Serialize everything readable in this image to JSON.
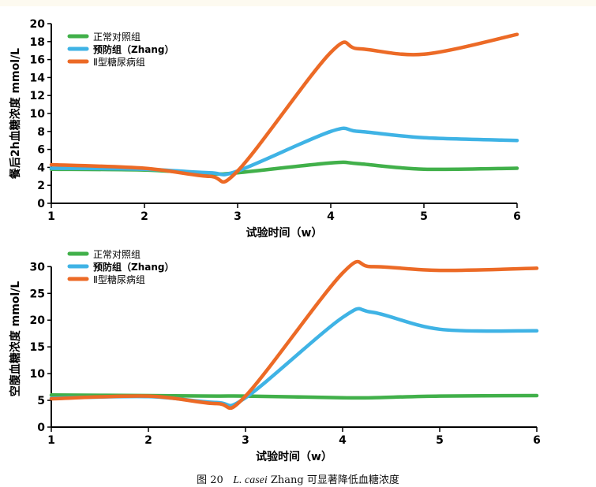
{
  "caption": {
    "figure_no": "图 20",
    "species": "L. casei",
    "text": " Zhang 可显著降低血糖浓度"
  },
  "colors": {
    "normal": "#41b04a",
    "prevention": "#3fb3e5",
    "diabetes": "#ec6a26"
  },
  "chart_data": [
    {
      "type": "line",
      "ylabel": "餐后2h血糖浓度 mmol/L",
      "xlabel": "试验时间（w）",
      "x": [
        1,
        2,
        2.7,
        3,
        4,
        4.3,
        5,
        6
      ],
      "xticks": [
        1,
        2,
        3,
        4,
        5,
        6
      ],
      "xlim": [
        1,
        6
      ],
      "ylim": [
        0,
        20
      ],
      "yticks": [
        0,
        2,
        4,
        6,
        8,
        10,
        12,
        14,
        16,
        18,
        20
      ],
      "legend": "top-left",
      "series": [
        {
          "name": "正常对照组",
          "color": "#41b04a",
          "values": [
            3.8,
            3.7,
            3.3,
            3.4,
            4.5,
            4.4,
            3.8,
            3.9
          ]
        },
        {
          "name": "预防组（Zhang）",
          "color": "#3fb3e5",
          "values": [
            3.9,
            3.8,
            3.4,
            3.6,
            8.0,
            8.0,
            7.3,
            7.0
          ]
        },
        {
          "name": "Ⅱ型糖尿病组",
          "color": "#ec6a26",
          "values": [
            4.3,
            3.9,
            3.0,
            3.6,
            16.8,
            17.2,
            16.6,
            18.8
          ]
        }
      ]
    },
    {
      "type": "line",
      "ylabel": "空腹血糖浓度 mmol/L",
      "xlabel": "试验时间（w）",
      "x": [
        1,
        2,
        2.7,
        3,
        4,
        4.3,
        5,
        6
      ],
      "xticks": [
        1,
        2,
        3,
        4,
        5,
        6
      ],
      "xlim": [
        1,
        6
      ],
      "ylim": [
        0,
        33
      ],
      "yticks": [
        0,
        5,
        10,
        15,
        20,
        25,
        30
      ],
      "legend": "top-left",
      "series": [
        {
          "name": "正常对照组",
          "color": "#41b04a",
          "values": [
            6.0,
            5.9,
            5.8,
            5.8,
            5.5,
            5.5,
            5.8,
            5.9
          ]
        },
        {
          "name": "预防组（Zhang）",
          "color": "#3fb3e5",
          "values": [
            5.4,
            5.7,
            4.6,
            5.5,
            20.5,
            21.5,
            18.3,
            18.0
          ]
        },
        {
          "name": "Ⅱ型糖尿病组",
          "color": "#ec6a26",
          "values": [
            5.3,
            5.8,
            4.4,
            5.8,
            28.8,
            30.0,
            29.3,
            29.7
          ]
        }
      ]
    }
  ]
}
